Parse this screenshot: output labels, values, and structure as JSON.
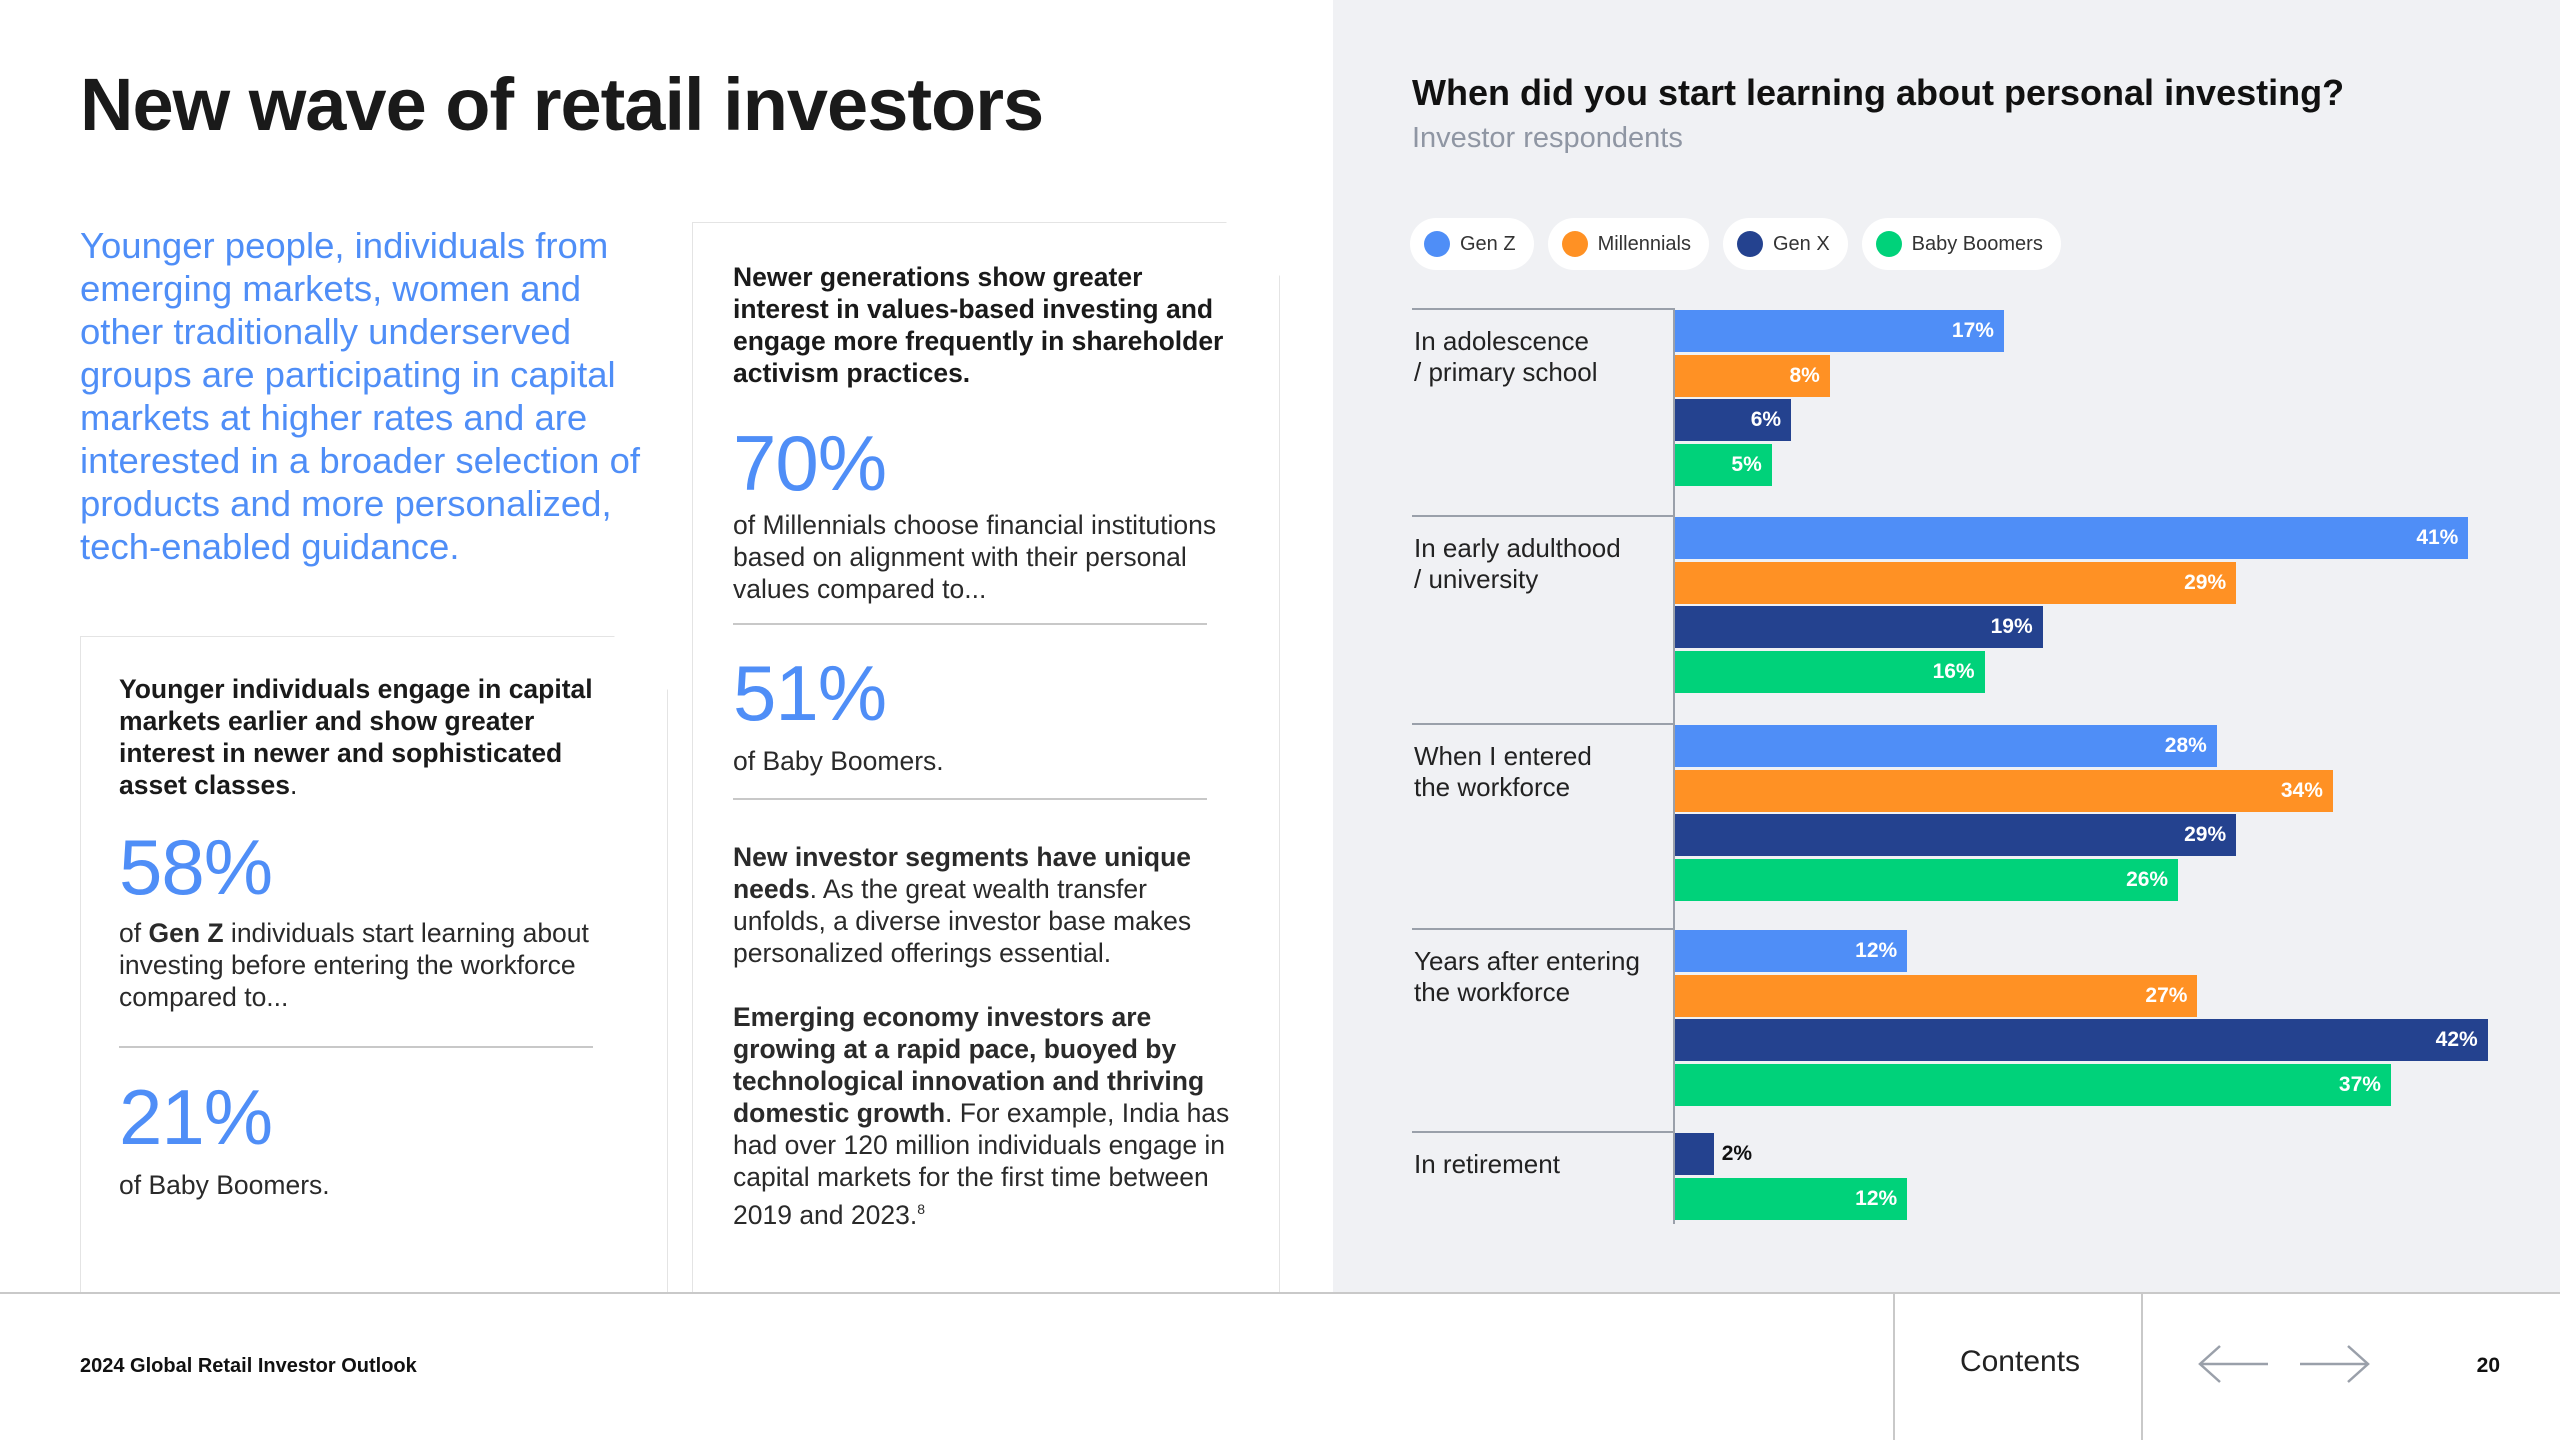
{
  "page_title": "New wave of retail investors",
  "intro": "Younger people, individuals from emerging markets, women and other traditionally underserved groups are participating in capital markets at higher rates and are interested in a broader selection of products and more personalized, tech-enabled guidance.",
  "left_card": {
    "heading_bold": "Younger individuals engage in capital markets earlier and show greater interest in newer and sophisticated asset classes",
    "heading_tail": ".",
    "stat1_value": "58%",
    "stat1_prefix": "of ",
    "stat1_bold": "Gen Z",
    "stat1_rest": " individuals start learning about investing before entering the workforce compared to...",
    "stat2_value": "21%",
    "stat2_text": "of Baby Boomers."
  },
  "mid_card": {
    "heading": "Newer generations show greater interest in values-based investing and engage more frequently in shareholder activism practices.",
    "stat1_value": "70%",
    "stat1_text": "of Millennials choose financial institutions based on alignment with their personal values compared to...",
    "stat2_value": "51%",
    "stat2_text": "of Baby Boomers.",
    "para1_bold": "New investor segments have unique needs",
    "para1_rest": ". As the great wealth transfer unfolds, a diverse investor base makes personalized offerings essential.",
    "para2_bold": "Emerging economy investors are growing at a rapid pace, buoyed by technological innovation and thriving domestic growth",
    "para2_rest": ". For example, India has had over 120 million individuals engage in capital markets for the first time between 2019 and 2023.",
    "para2_footnote": "8"
  },
  "chart_data": {
    "type": "bar",
    "orientation": "horizontal",
    "title": "When did you start learning about personal investing?",
    "subtitle": "Investor respondents",
    "categories": [
      "In adolescence / primary school",
      "In early adulthood / university",
      "When I entered the workforce",
      "Years after entering the workforce",
      "In retirement"
    ],
    "category_lines": [
      [
        "In adolescence",
        "/ primary school"
      ],
      [
        "In early adulthood",
        "/ university"
      ],
      [
        "When I entered",
        "the workforce"
      ],
      [
        "Years after entering",
        "the workforce"
      ],
      [
        "In retirement"
      ]
    ],
    "series": [
      {
        "name": "Gen Z",
        "color": "#4f8ef7",
        "values": [
          17,
          41,
          28,
          12,
          null
        ]
      },
      {
        "name": "Millennials",
        "color": "#ff9124",
        "values": [
          8,
          29,
          34,
          27,
          null
        ]
      },
      {
        "name": "Gen X",
        "color": "#24428f",
        "values": [
          6,
          19,
          29,
          42,
          2
        ]
      },
      {
        "name": "Baby Boomers",
        "color": "#00d27a",
        "values": [
          5,
          16,
          26,
          37,
          12
        ]
      }
    ],
    "value_suffix": "%",
    "legend_position": "top-left",
    "grid": false
  },
  "footer": {
    "report_title": "2024 Global Retail Investor Outlook",
    "contents_label": "Contents",
    "prev_icon": "arrow-left-icon",
    "next_icon": "arrow-right-icon",
    "page_number": "20"
  }
}
